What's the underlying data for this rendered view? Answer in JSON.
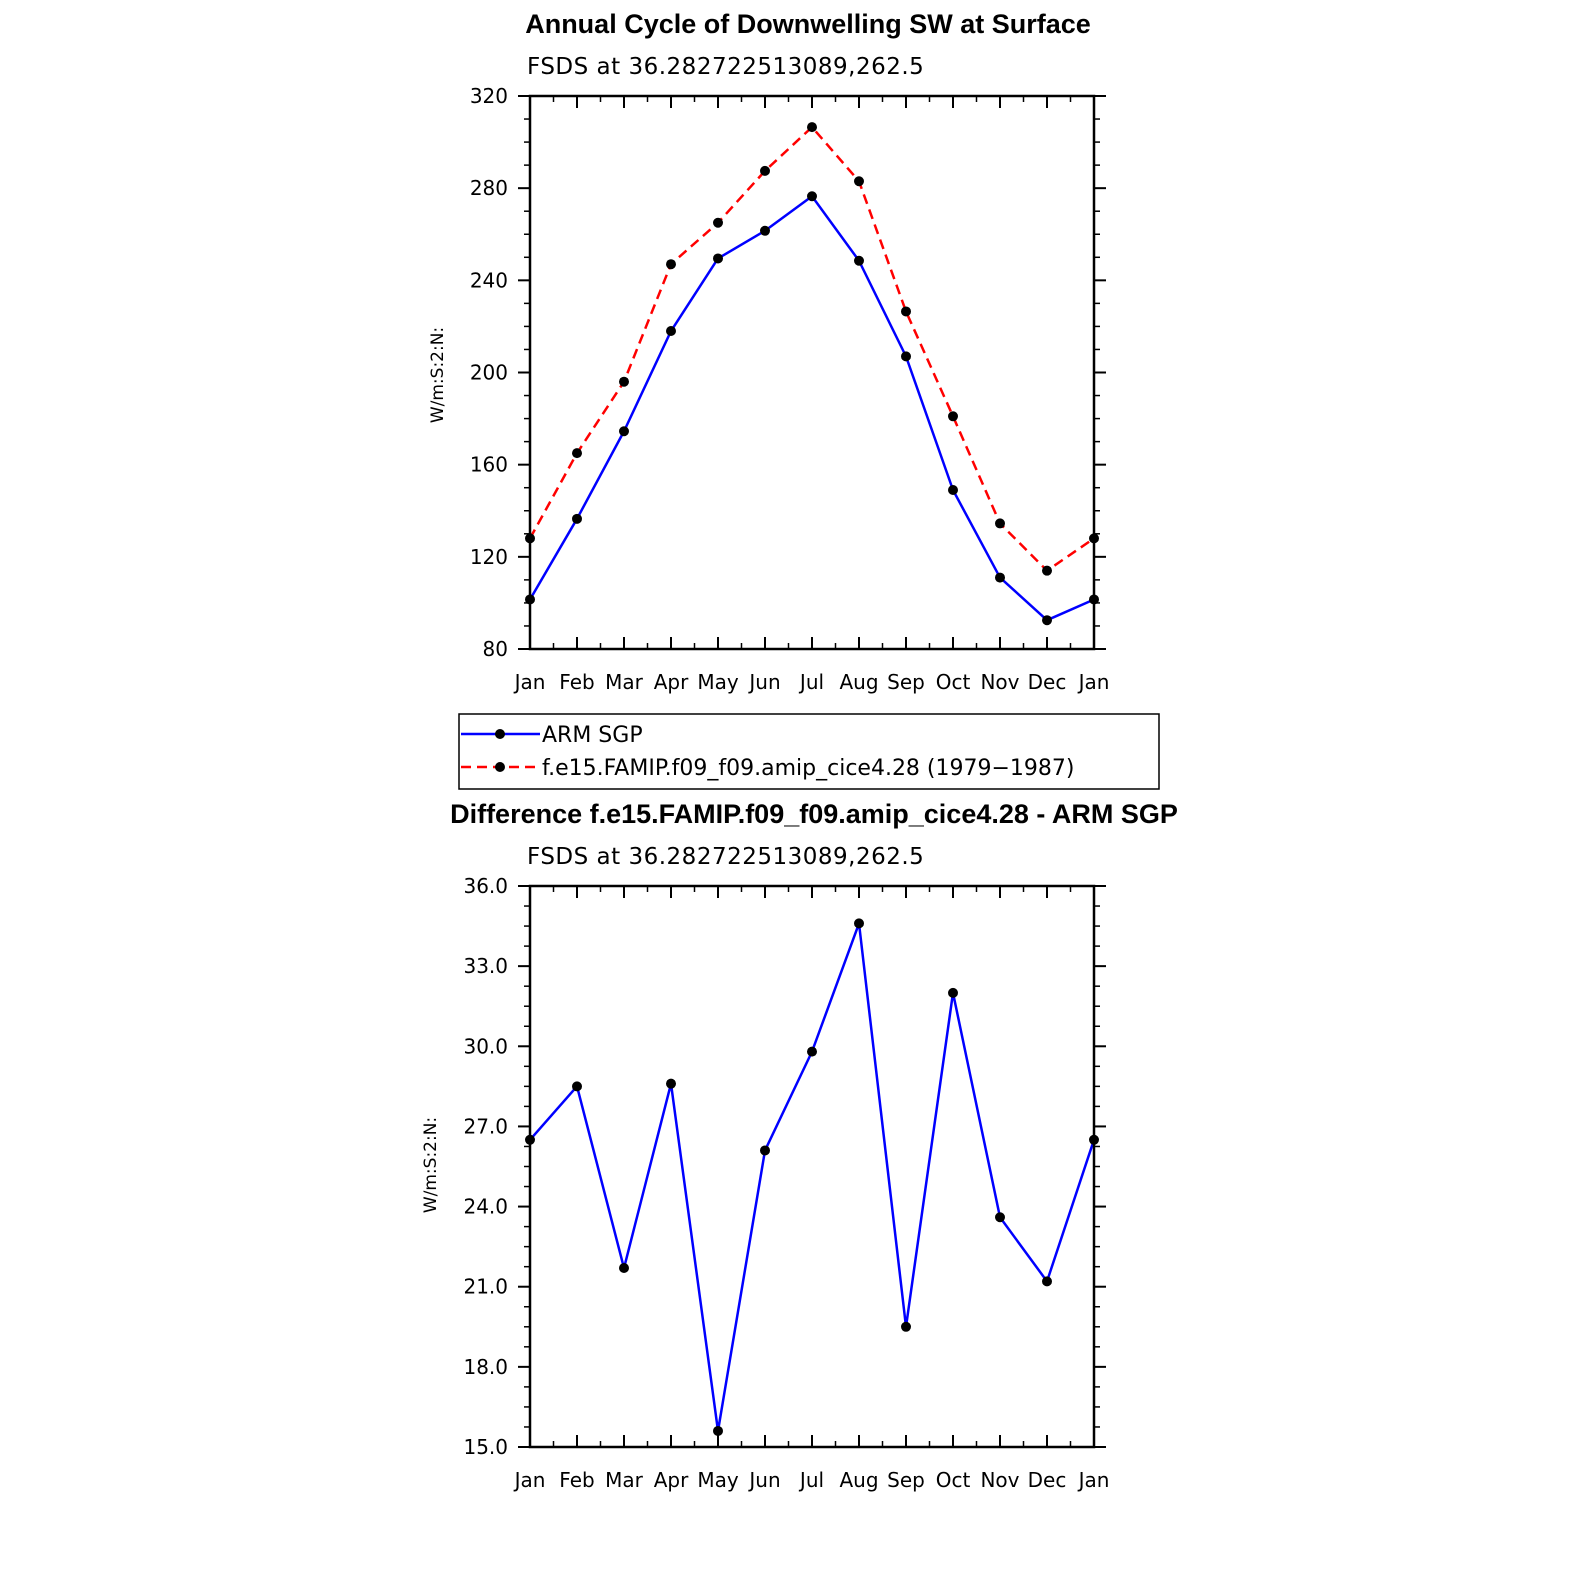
{
  "colors": {
    "obs": "#0000ff",
    "model": "#ff0000",
    "marker": "#000000"
  },
  "chart_data": [
    {
      "type": "line",
      "title": "Annual Cycle of Downwelling SW at Surface",
      "subtitle": "FSDS at 36.282722513089,262.5",
      "ylabel": "W/m:S:2:N:",
      "categories": [
        "Jan",
        "Feb",
        "Mar",
        "Apr",
        "May",
        "Jun",
        "Jul",
        "Aug",
        "Sep",
        "Oct",
        "Nov",
        "Dec",
        "Jan"
      ],
      "ylim": [
        80,
        320
      ],
      "yticks": [
        "320",
        "280",
        "240",
        "200",
        "160",
        "120",
        "80"
      ],
      "series": [
        {
          "name": "ARM SGP",
          "style": "solid",
          "color": "#0000ff",
          "values": [
            101.5,
            136.5,
            174.5,
            218,
            249.5,
            261.5,
            276.5,
            248.5,
            207,
            149,
            111,
            92.5,
            101.5
          ]
        },
        {
          "name": "f.e15.FAMIP.f09_f09.amip_cice4.28 (1979-1987)",
          "style": "dashed",
          "color": "#ff0000",
          "values": [
            128,
            165,
            196,
            247,
            265,
            287.5,
            306.5,
            283,
            226.5,
            181,
            134.5,
            114,
            128
          ]
        }
      ]
    },
    {
      "type": "line",
      "title": "Difference f.e15.FAMIP.f09_f09.amip_cice4.28 - ARM SGP",
      "subtitle": "FSDS at 36.282722513089,262.5",
      "ylabel": "W/m:S:2:N:",
      "categories": [
        "Jan",
        "Feb",
        "Mar",
        "Apr",
        "May",
        "Jun",
        "Jul",
        "Aug",
        "Sep",
        "Oct",
        "Nov",
        "Dec",
        "Jan"
      ],
      "ylim": [
        15,
        36
      ],
      "yticks": [
        "36.0",
        "33.0",
        "30.0",
        "27.0",
        "24.0",
        "21.0",
        "18.0",
        "15.0"
      ],
      "series": [
        {
          "name": "",
          "style": "solid",
          "color": "#0000ff",
          "values": [
            26.5,
            28.5,
            21.7,
            28.6,
            15.6,
            26.1,
            29.8,
            34.6,
            19.5,
            32.0,
            23.6,
            21.2,
            26.5
          ]
        }
      ]
    }
  ],
  "legend": {
    "entries": [
      {
        "label": "ARM SGP",
        "style": "solid",
        "color": "#0000ff"
      },
      {
        "label": "f.e15.FAMIP.f09_f09.amip_cice4.28 (1979−1987)",
        "style": "dashed",
        "color": "#ff0000"
      }
    ]
  }
}
